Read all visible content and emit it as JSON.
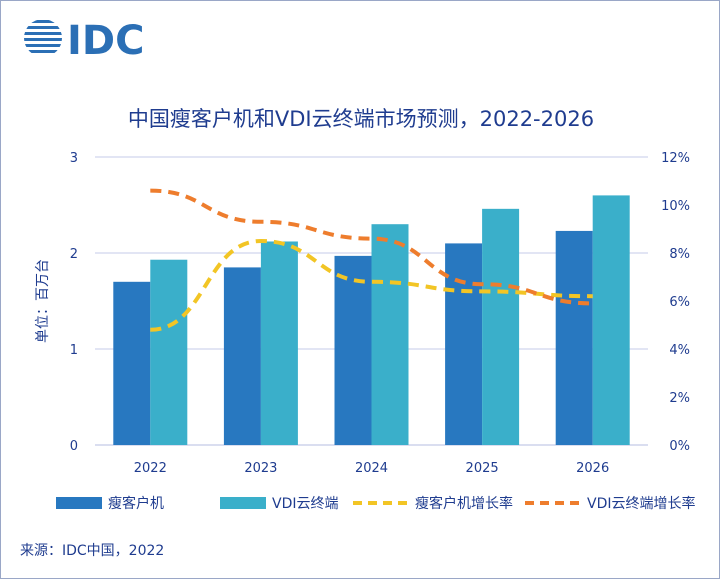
{
  "logo": {
    "text": "IDC"
  },
  "chart_data": {
    "type": "bar",
    "title": "中国瘦客户机和VDI云终端市场预测，2022-2026",
    "categories": [
      "2022",
      "2023",
      "2024",
      "2025",
      "2026"
    ],
    "ylabel": "单位：百万台",
    "ylim": [
      0,
      3
    ],
    "yticks": [
      "0",
      "1",
      "2",
      "3"
    ],
    "y2lim": [
      0,
      12
    ],
    "y2ticks": [
      "0%",
      "2%",
      "4%",
      "6%",
      "8%",
      "10%",
      "12%"
    ],
    "series": [
      {
        "name": "瘦客户机",
        "kind": "bar",
        "color": "#2878c0",
        "values": [
          1.7,
          1.85,
          1.97,
          2.1,
          2.23
        ]
      },
      {
        "name": "VDI云终端",
        "kind": "bar",
        "color": "#3aafca",
        "values": [
          1.93,
          2.12,
          2.3,
          2.46,
          2.6
        ]
      },
      {
        "name": "瘦客户机增长率",
        "kind": "line",
        "axis": "right",
        "color": "#f2c525",
        "values": [
          4.8,
          8.5,
          6.8,
          6.4,
          6.2
        ]
      },
      {
        "name": "VDI云终端增长率",
        "kind": "line",
        "axis": "right",
        "color": "#ee7d2d",
        "values": [
          10.6,
          9.3,
          8.6,
          6.7,
          5.9
        ]
      }
    ],
    "grid": true,
    "legend": "bottom"
  },
  "source": "来源：IDC中国，2022"
}
